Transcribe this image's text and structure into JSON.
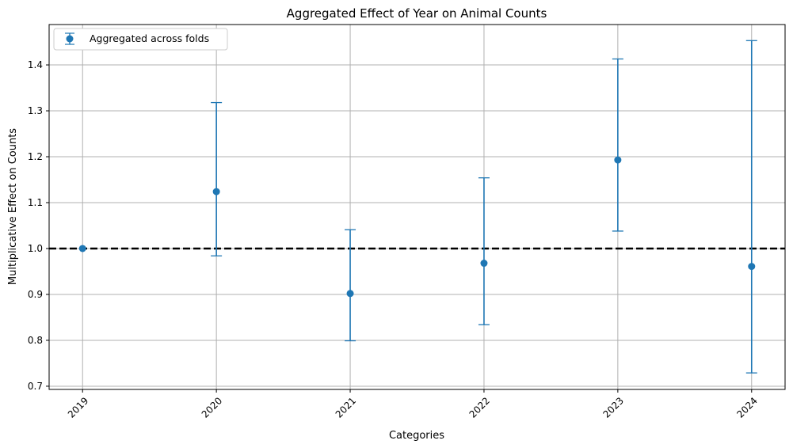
{
  "chart_data": {
    "type": "scatter",
    "title": "Aggregated Effect of Year on Animal Counts",
    "xlabel": "Categories",
    "ylabel": "Multiplicative Effect on Counts",
    "categories": [
      "2019",
      "2020",
      "2021",
      "2022",
      "2023",
      "2024"
    ],
    "ylim": [
      0.693,
      1.488
    ],
    "yticks": [
      0.7,
      0.8,
      0.9,
      1.0,
      1.1,
      1.2,
      1.3,
      1.4
    ],
    "ytick_labels": [
      "0.7",
      "0.8",
      "0.9",
      "1.0",
      "1.1",
      "1.2",
      "1.3",
      "1.4"
    ],
    "grid": true,
    "reference_line": {
      "y": 1.0,
      "style": "dashed",
      "color": "#000000"
    },
    "legend": {
      "position": "top-left",
      "entries": [
        "Aggregated across folds"
      ]
    },
    "series": [
      {
        "name": "Aggregated across folds",
        "color": "#1f77b4",
        "values": [
          1.0,
          1.124,
          0.902,
          0.968,
          1.193,
          0.961
        ],
        "lower": [
          1.0,
          0.984,
          0.799,
          0.834,
          1.038,
          0.729
        ],
        "upper": [
          1.0,
          1.318,
          1.041,
          1.154,
          1.413,
          1.453
        ]
      }
    ]
  }
}
